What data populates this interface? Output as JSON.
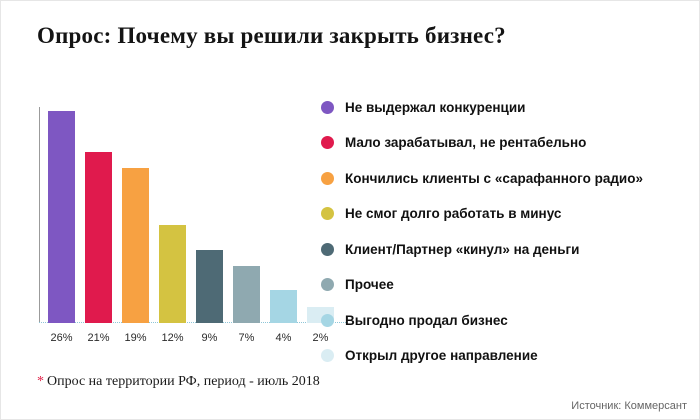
{
  "title": "Опрос: Почему вы решили закрыть бизнес?",
  "footnote": {
    "marker": "*",
    "text": "Опрос на территории РФ, период - июль 2018"
  },
  "source": "Источник: Коммерсант",
  "chart_data": {
    "type": "bar",
    "title": "Опрос: Почему вы решили закрыть бизнес?",
    "categories": [
      "Не выдержал конкуренции",
      "Мало зарабатывал, не рентабельно",
      "Кончились клиенты с «сарафанного радио»",
      "Не смог долго работать в минус",
      "Клиент/Партнер «кинул» на деньги",
      "Прочее",
      "Выгодно продал бизнес",
      "Открыл другое направление"
    ],
    "values": [
      26,
      21,
      19,
      12,
      9,
      7,
      4,
      2
    ],
    "value_labels": [
      "26%",
      "21%",
      "19%",
      "12%",
      "9%",
      "7%",
      "4%",
      "2%"
    ],
    "colors": [
      "#7e57c2",
      "#e01a4d",
      "#f7a142",
      "#d4c341",
      "#4e6a75",
      "#8fa9b0",
      "#a5d6e4",
      "#daedf3"
    ],
    "ylim": [
      0,
      26
    ],
    "xlabel": "",
    "ylabel": "",
    "grid": false,
    "legend_position": "right"
  }
}
